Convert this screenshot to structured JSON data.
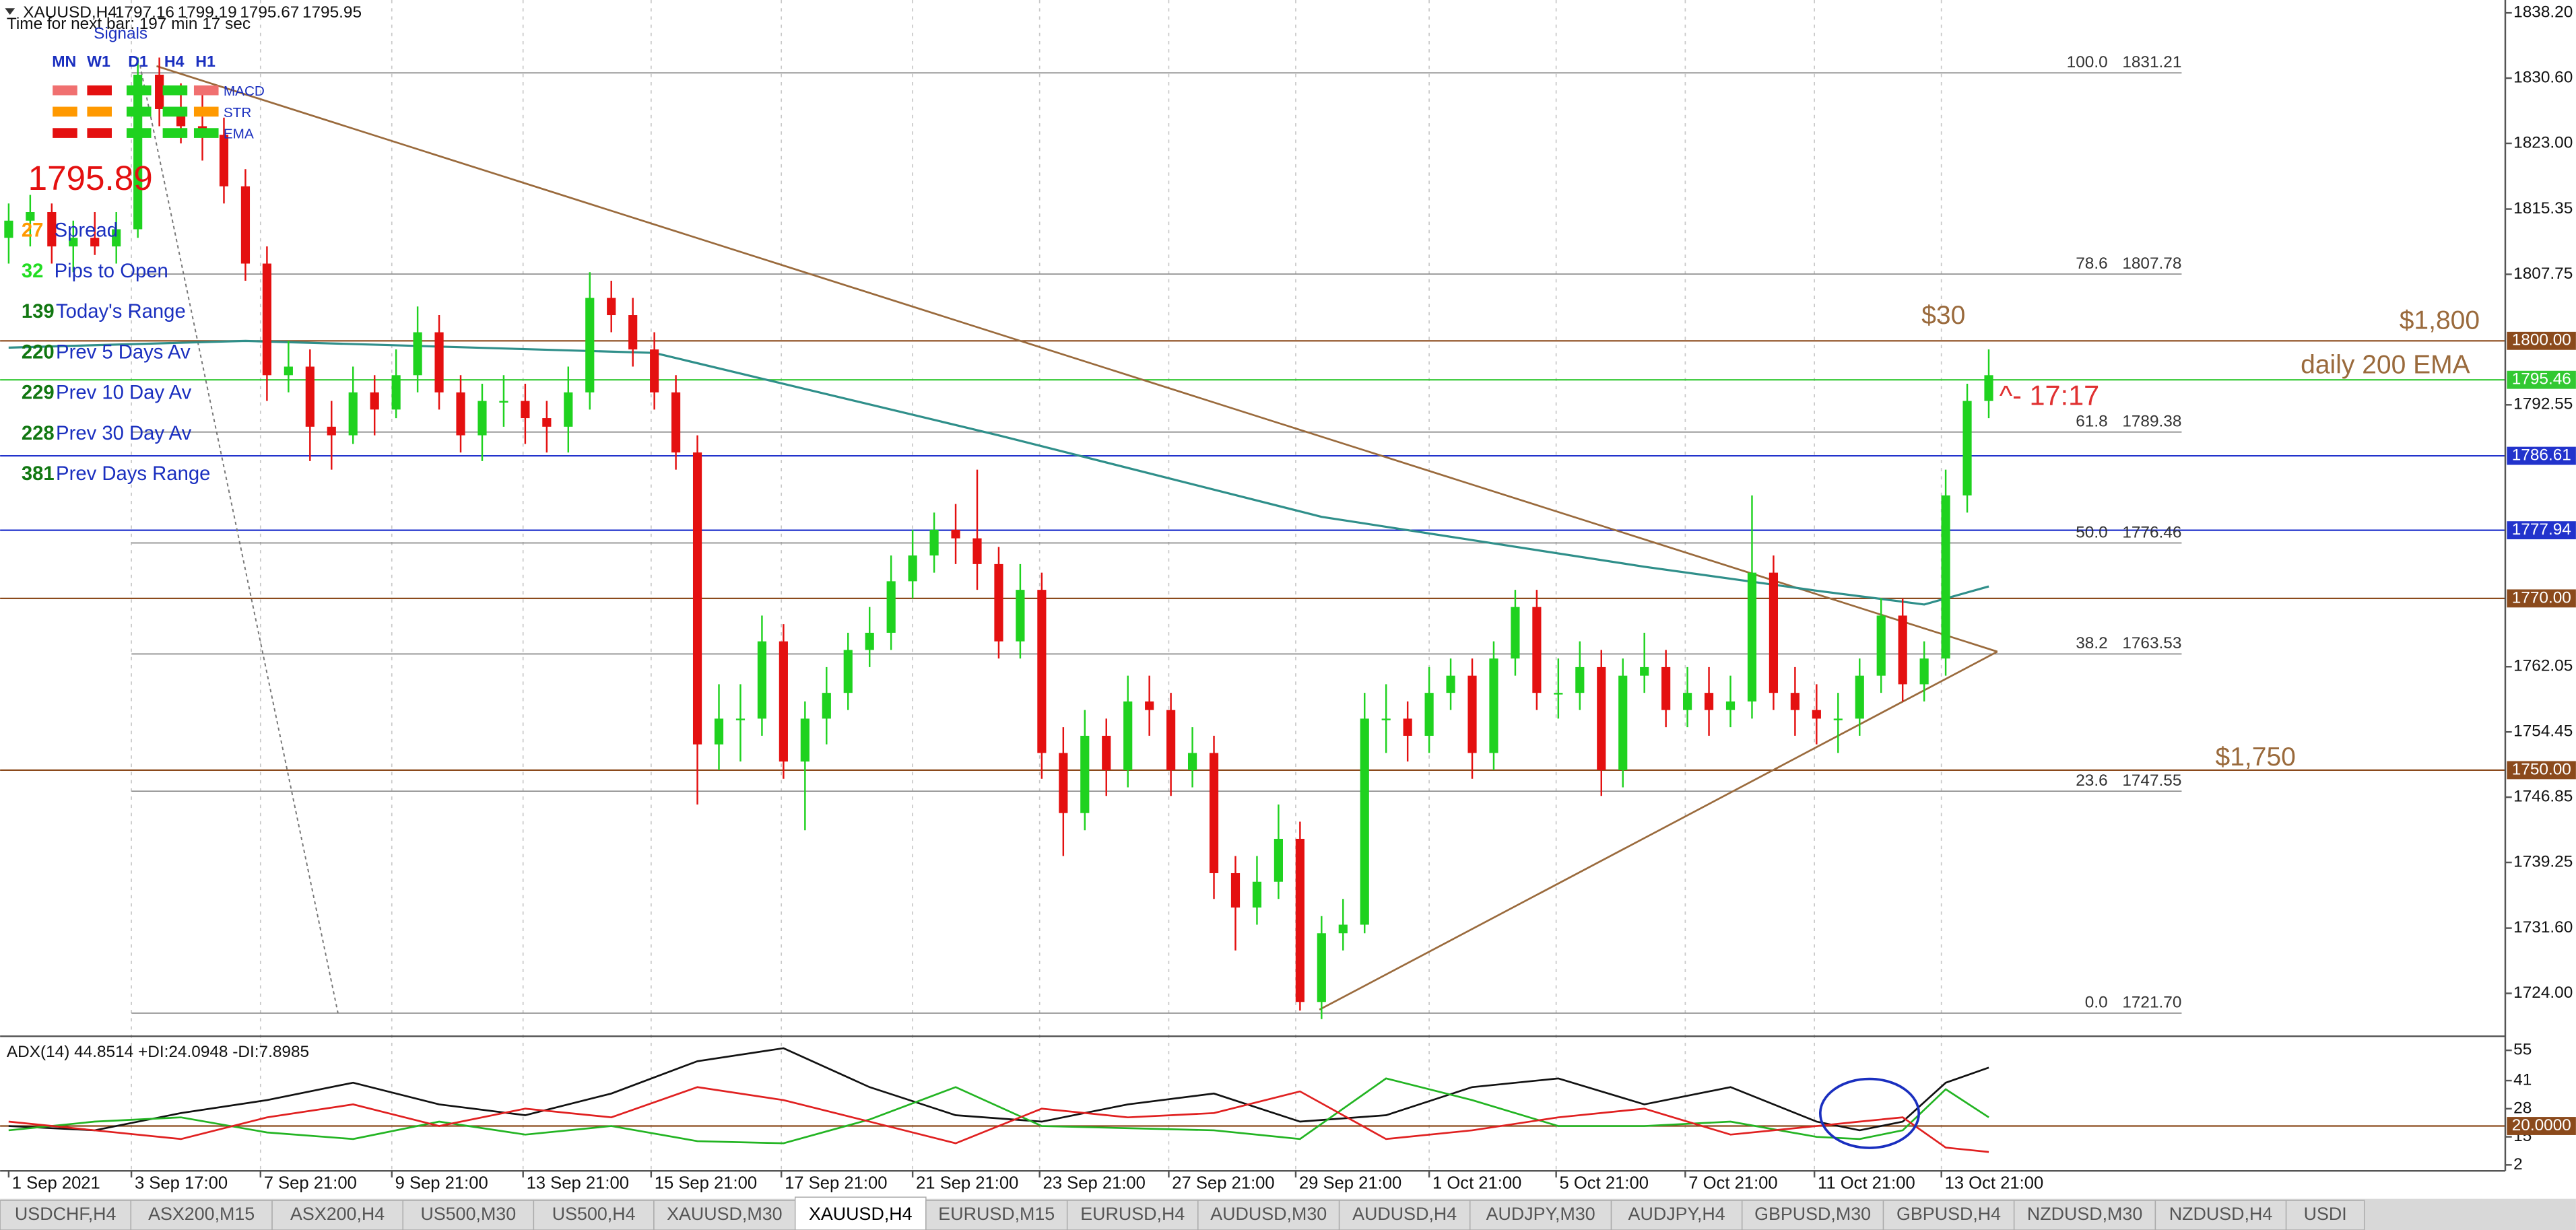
{
  "chart_data": {
    "type": "candlestick",
    "symbol": "XAUUSD,H4",
    "header_ohlc": [
      1797.16,
      1799.19,
      1795.67,
      1795.95
    ],
    "timer": "Time for next bar: 197 min 17 sec",
    "up_color": "#1fd21f",
    "down_color": "#e41010",
    "candles": [
      [
        1812,
        1816,
        1809,
        1814
      ],
      [
        1814,
        1817,
        1811,
        1815
      ],
      [
        1815,
        1816,
        1809,
        1811
      ],
      [
        1811,
        1814,
        1808,
        1812
      ],
      [
        1812,
        1815,
        1810,
        1811
      ],
      [
        1811,
        1815,
        1809,
        1813
      ],
      [
        1813,
        1833,
        1812,
        1831
      ],
      [
        1831,
        1833,
        1825,
        1827
      ],
      [
        1827,
        1830,
        1823,
        1825
      ],
      [
        1825,
        1829,
        1821,
        1824
      ],
      [
        1824,
        1826,
        1816,
        1818
      ],
      [
        1818,
        1820,
        1807,
        1809
      ],
      [
        1809,
        1811,
        1793,
        1796
      ],
      [
        1796,
        1800,
        1794,
        1797
      ],
      [
        1797,
        1799,
        1786,
        1790
      ],
      [
        1790,
        1793,
        1785,
        1789
      ],
      [
        1789,
        1797,
        1788,
        1794
      ],
      [
        1794,
        1796,
        1789,
        1792
      ],
      [
        1792,
        1799,
        1791,
        1796
      ],
      [
        1796,
        1804,
        1794,
        1801
      ],
      [
        1801,
        1803,
        1792,
        1794
      ],
      [
        1794,
        1796,
        1787,
        1789
      ],
      [
        1789,
        1795,
        1786,
        1793
      ],
      [
        1793,
        1796,
        1790,
        1793
      ],
      [
        1793,
        1795,
        1788,
        1791
      ],
      [
        1791,
        1793,
        1787,
        1790
      ],
      [
        1790,
        1797,
        1787,
        1794
      ],
      [
        1794,
        1808,
        1792,
        1805
      ],
      [
        1805,
        1807,
        1801,
        1803
      ],
      [
        1803,
        1805,
        1797,
        1799
      ],
      [
        1799,
        1801,
        1792,
        1794
      ],
      [
        1794,
        1796,
        1785,
        1787
      ],
      [
        1787,
        1789,
        1746,
        1753
      ],
      [
        1753,
        1760,
        1750,
        1756
      ],
      [
        1756,
        1760,
        1751,
        1756
      ],
      [
        1756,
        1768,
        1754,
        1765
      ],
      [
        1765,
        1767,
        1749,
        1751
      ],
      [
        1751,
        1758,
        1743,
        1756
      ],
      [
        1756,
        1762,
        1753,
        1759
      ],
      [
        1759,
        1766,
        1757,
        1764
      ],
      [
        1764,
        1769,
        1762,
        1766
      ],
      [
        1766,
        1775,
        1764,
        1772
      ],
      [
        1772,
        1778,
        1770,
        1775
      ],
      [
        1775,
        1780,
        1773,
        1778
      ],
      [
        1778,
        1781,
        1774,
        1777
      ],
      [
        1777,
        1785,
        1771,
        1774
      ],
      [
        1774,
        1776,
        1763,
        1765
      ],
      [
        1765,
        1774,
        1763,
        1771
      ],
      [
        1771,
        1773,
        1749,
        1752
      ],
      [
        1752,
        1755,
        1740,
        1745
      ],
      [
        1745,
        1757,
        1743,
        1754
      ],
      [
        1754,
        1756,
        1747,
        1750
      ],
      [
        1750,
        1761,
        1748,
        1758
      ],
      [
        1758,
        1761,
        1754,
        1757
      ],
      [
        1757,
        1759,
        1747,
        1750
      ],
      [
        1750,
        1755,
        1748,
        1752
      ],
      [
        1752,
        1754,
        1735,
        1738
      ],
      [
        1738,
        1740,
        1729,
        1734
      ],
      [
        1734,
        1740,
        1732,
        1737
      ],
      [
        1737,
        1746,
        1735,
        1742
      ],
      [
        1742,
        1744,
        1722,
        1723
      ],
      [
        1723,
        1733,
        1721,
        1731
      ],
      [
        1731,
        1735,
        1729,
        1732
      ],
      [
        1732,
        1759,
        1731,
        1756
      ],
      [
        1756,
        1760,
        1752,
        1756
      ],
      [
        1756,
        1758,
        1751,
        1754
      ],
      [
        1754,
        1762,
        1752,
        1759
      ],
      [
        1759,
        1763,
        1757,
        1761
      ],
      [
        1761,
        1763,
        1749,
        1752
      ],
      [
        1752,
        1765,
        1750,
        1763
      ],
      [
        1763,
        1771,
        1761,
        1769
      ],
      [
        1769,
        1771,
        1757,
        1759
      ],
      [
        1759,
        1763,
        1756,
        1759
      ],
      [
        1759,
        1765,
        1757,
        1762
      ],
      [
        1762,
        1764,
        1747,
        1750
      ],
      [
        1750,
        1763,
        1748,
        1761
      ],
      [
        1761,
        1766,
        1759,
        1762
      ],
      [
        1762,
        1764,
        1755,
        1757
      ],
      [
        1757,
        1762,
        1755,
        1759
      ],
      [
        1759,
        1762,
        1754,
        1757
      ],
      [
        1757,
        1761,
        1755,
        1758
      ],
      [
        1758,
        1782,
        1756,
        1773
      ],
      [
        1773,
        1775,
        1757,
        1759
      ],
      [
        1759,
        1762,
        1754,
        1757
      ],
      [
        1757,
        1760,
        1753,
        1756
      ],
      [
        1756,
        1759,
        1752,
        1756
      ],
      [
        1756,
        1763,
        1754,
        1761
      ],
      [
        1761,
        1770,
        1759,
        1768
      ],
      [
        1768,
        1770,
        1758,
        1760
      ],
      [
        1760,
        1765,
        1758,
        1763
      ],
      [
        1763,
        1785,
        1761,
        1782
      ],
      [
        1782,
        1795,
        1780,
        1793
      ],
      [
        1793,
        1799,
        1791,
        1796
      ]
    ],
    "xlim": [
      -0.4,
      116
    ],
    "xticks": [
      {
        "value": 0,
        "label": "1 Sep 2021"
      },
      {
        "value": 5.7,
        "label": "3 Sep 17:00"
      },
      {
        "value": 11.7,
        "label": "7 Sep 21:00"
      },
      {
        "value": 17.8,
        "label": "9 Sep 21:00"
      },
      {
        "value": 23.9,
        "label": "13 Sep 21:00"
      },
      {
        "value": 29.85,
        "label": "15 Sep 21:00"
      },
      {
        "value": 35.9,
        "label": "17 Sep 21:00"
      },
      {
        "value": 42,
        "label": "21 Sep 21:00"
      },
      {
        "value": 47.9,
        "label": "23 Sep 21:00"
      },
      {
        "value": 53.9,
        "label": "27 Sep 21:00"
      },
      {
        "value": 59.8,
        "label": "29 Sep 21:00"
      },
      {
        "value": 66,
        "label": "1 Oct 21:00"
      },
      {
        "value": 71.9,
        "label": "5 Oct 21:00"
      },
      {
        "value": 77.9,
        "label": "7 Oct 21:00"
      },
      {
        "value": 83.9,
        "label": "11 Oct 21:00"
      },
      {
        "value": 89.8,
        "label": "13 Oct 21:00"
      }
    ],
    "ylim": [
      1719.2,
      1839.7
    ],
    "yticks": [
      {
        "value": 1838.2,
        "label": "1838.20"
      },
      {
        "value": 1830.6,
        "label": "1830.60"
      },
      {
        "value": 1823,
        "label": "1823.00"
      },
      {
        "value": 1815.35,
        "label": "1815.35"
      },
      {
        "value": 1807.75,
        "label": "1807.75"
      },
      {
        "value": 1792.55,
        "label": "1792.55"
      },
      {
        "value": 1762.05,
        "label": "1762.05"
      },
      {
        "value": 1754.45,
        "label": "1754.45"
      },
      {
        "value": 1746.85,
        "label": "1746.85"
      },
      {
        "value": 1739.25,
        "label": "1739.25"
      },
      {
        "value": 1731.6,
        "label": "1731.60"
      },
      {
        "value": 1724,
        "label": "1724.00"
      }
    ],
    "ema": {
      "color": "#2f8f8a",
      "x": [
        0,
        11,
        30,
        46,
        61,
        76,
        84,
        89,
        92
      ],
      "values": [
        1799.2,
        1800,
        1798.6,
        1789,
        1779.5,
        1773.7,
        1770.9,
        1769.3,
        1771.4
      ]
    },
    "levels": [
      {
        "value": 1800,
        "label": "1800.00",
        "color": "#8b4a1c"
      },
      {
        "value": 1795.46,
        "label": "1795.46",
        "color": "#32c832"
      },
      {
        "value": 1786.61,
        "label": "1786.61",
        "color": "#2233cc"
      },
      {
        "value": 1777.94,
        "label": "1777.94",
        "color": "#2233cc"
      },
      {
        "value": 1770,
        "label": "1770.00",
        "color": "#8b4a1c"
      },
      {
        "value": 1750,
        "label": "1750.00",
        "color": "#8b4a1c"
      }
    ],
    "fib": [
      {
        "level": "100.0",
        "value": 1831.21,
        "label": "1831.21"
      },
      {
        "level": "78.6",
        "value": 1807.78,
        "label": "1807.78"
      },
      {
        "level": "61.8",
        "value": 1789.38,
        "label": "1789.38"
      },
      {
        "level": "50.0",
        "value": 1776.46,
        "label": "1776.46"
      },
      {
        "level": "38.2",
        "value": 1763.53,
        "label": "1763.53"
      },
      {
        "level": "23.6",
        "value": 1747.55,
        "label": "1747.55"
      },
      {
        "level": "0.0",
        "value": 1721.7,
        "label": "1721.70"
      }
    ],
    "trendlines": [
      {
        "x": [
          6.87,
          92.4
        ],
        "y": [
          1832,
          1763.8
        ],
        "color": "#9a6a3c"
      },
      {
        "x": [
          60.9,
          92.4
        ],
        "y": [
          1722.1,
          1763.8
        ],
        "color": "#9a6a3c"
      },
      {
        "x": [
          6.1,
          15.3
        ],
        "y": [
          1832.1,
          1721.7
        ],
        "color": "#777777",
        "dashed": true
      }
    ],
    "annotations": [
      {
        "text": "$30",
        "color": "#9a6a3c"
      },
      {
        "text": "$1,800",
        "color": "#9a6a3c"
      },
      {
        "text": "daily 200 EMA",
        "color": "#9a6a3c"
      },
      {
        "text": "^- 17:17",
        "color": "#e03030"
      },
      {
        "text": "$1,750",
        "color": "#9a6a3c"
      }
    ],
    "indicator": {
      "label": "ADX(14) 44.8514 +DI:24.0948 -DI:7.8985",
      "ylim": [
        0,
        60
      ],
      "yticks": [
        55,
        41,
        28,
        15,
        2
      ],
      "level": {
        "value": 20,
        "label": "20.0000",
        "color": "#8b4a1c"
      },
      "x": [
        0,
        4,
        8,
        12,
        16,
        20,
        24,
        28,
        32,
        36,
        40,
        44,
        48,
        52,
        56,
        60,
        64,
        68,
        72,
        76,
        80,
        84,
        86,
        88,
        90,
        92
      ],
      "series": [
        {
          "color": "#111111",
          "values": [
            20,
            18,
            26,
            32,
            40,
            30,
            25,
            35,
            50,
            56,
            38,
            25,
            22,
            30,
            35,
            22,
            25,
            38,
            42,
            30,
            38,
            22,
            18,
            22,
            40,
            47
          ]
        },
        {
          "color": "#22b422",
          "values": [
            18,
            22,
            24,
            17,
            14,
            22,
            16,
            20,
            13,
            12,
            23,
            38,
            20,
            19,
            18,
            14,
            42,
            32,
            20,
            20,
            22,
            15,
            14,
            18,
            37,
            24
          ]
        },
        {
          "color": "#e02020",
          "values": [
            22,
            18,
            14,
            24,
            30,
            20,
            28,
            24,
            38,
            32,
            22,
            12,
            28,
            24,
            26,
            36,
            14,
            18,
            24,
            28,
            16,
            20,
            22,
            24,
            10,
            8
          ]
        }
      ]
    }
  },
  "signals": {
    "title": "Signals",
    "timeframes": [
      "MN",
      "W1",
      "D1",
      "H4",
      "H1"
    ],
    "indicators": [
      "MACD",
      "STR",
      "EMA"
    ],
    "colors": [
      [
        "#f07070",
        "#e41010",
        "#1fd21f",
        "#1fd21f",
        "#f07070"
      ],
      [
        "#ff9900",
        "#ff9900",
        "#1fd21f",
        "#1fd21f",
        "#ff9900"
      ],
      [
        "#e41010",
        "#e41010",
        "#1fd21f",
        "#1fd21f",
        "#1fd21f"
      ]
    ]
  },
  "info_panel": {
    "price": 1795.89,
    "rows": [
      {
        "value": 27,
        "label": "Spread",
        "color": "#ff9900"
      },
      {
        "value": 32,
        "label": "Pips to Open",
        "color": "#22dd22"
      },
      {
        "value": 139,
        "label": "Today's Range",
        "color": "#117711"
      },
      {
        "value": 220,
        "label": "Prev 5 Days Av",
        "color": "#117711"
      },
      {
        "value": 229,
        "label": "Prev 10 Day Av",
        "color": "#117711"
      },
      {
        "value": 228,
        "label": "Prev 30 Day Av",
        "color": "#117711"
      },
      {
        "value": 381,
        "label": "Prev Days Range",
        "color": "#117711"
      }
    ]
  },
  "tabs": {
    "items": [
      "USDCHF,H4",
      "ASX200,M15",
      "ASX200,H4",
      "US500,M30",
      "US500,H4",
      "XAUUSD,M30",
      "XAUUSD,H4",
      "EURUSD,M15",
      "EURUSD,H4",
      "AUDUSD,M30",
      "AUDUSD,H4",
      "AUDJPY,M30",
      "AUDJPY,H4",
      "GBPUSD,M30",
      "GBPUSD,H4",
      "NZDUSD,M30",
      "NZDUSD,H4",
      "USDI"
    ],
    "active": 6
  }
}
